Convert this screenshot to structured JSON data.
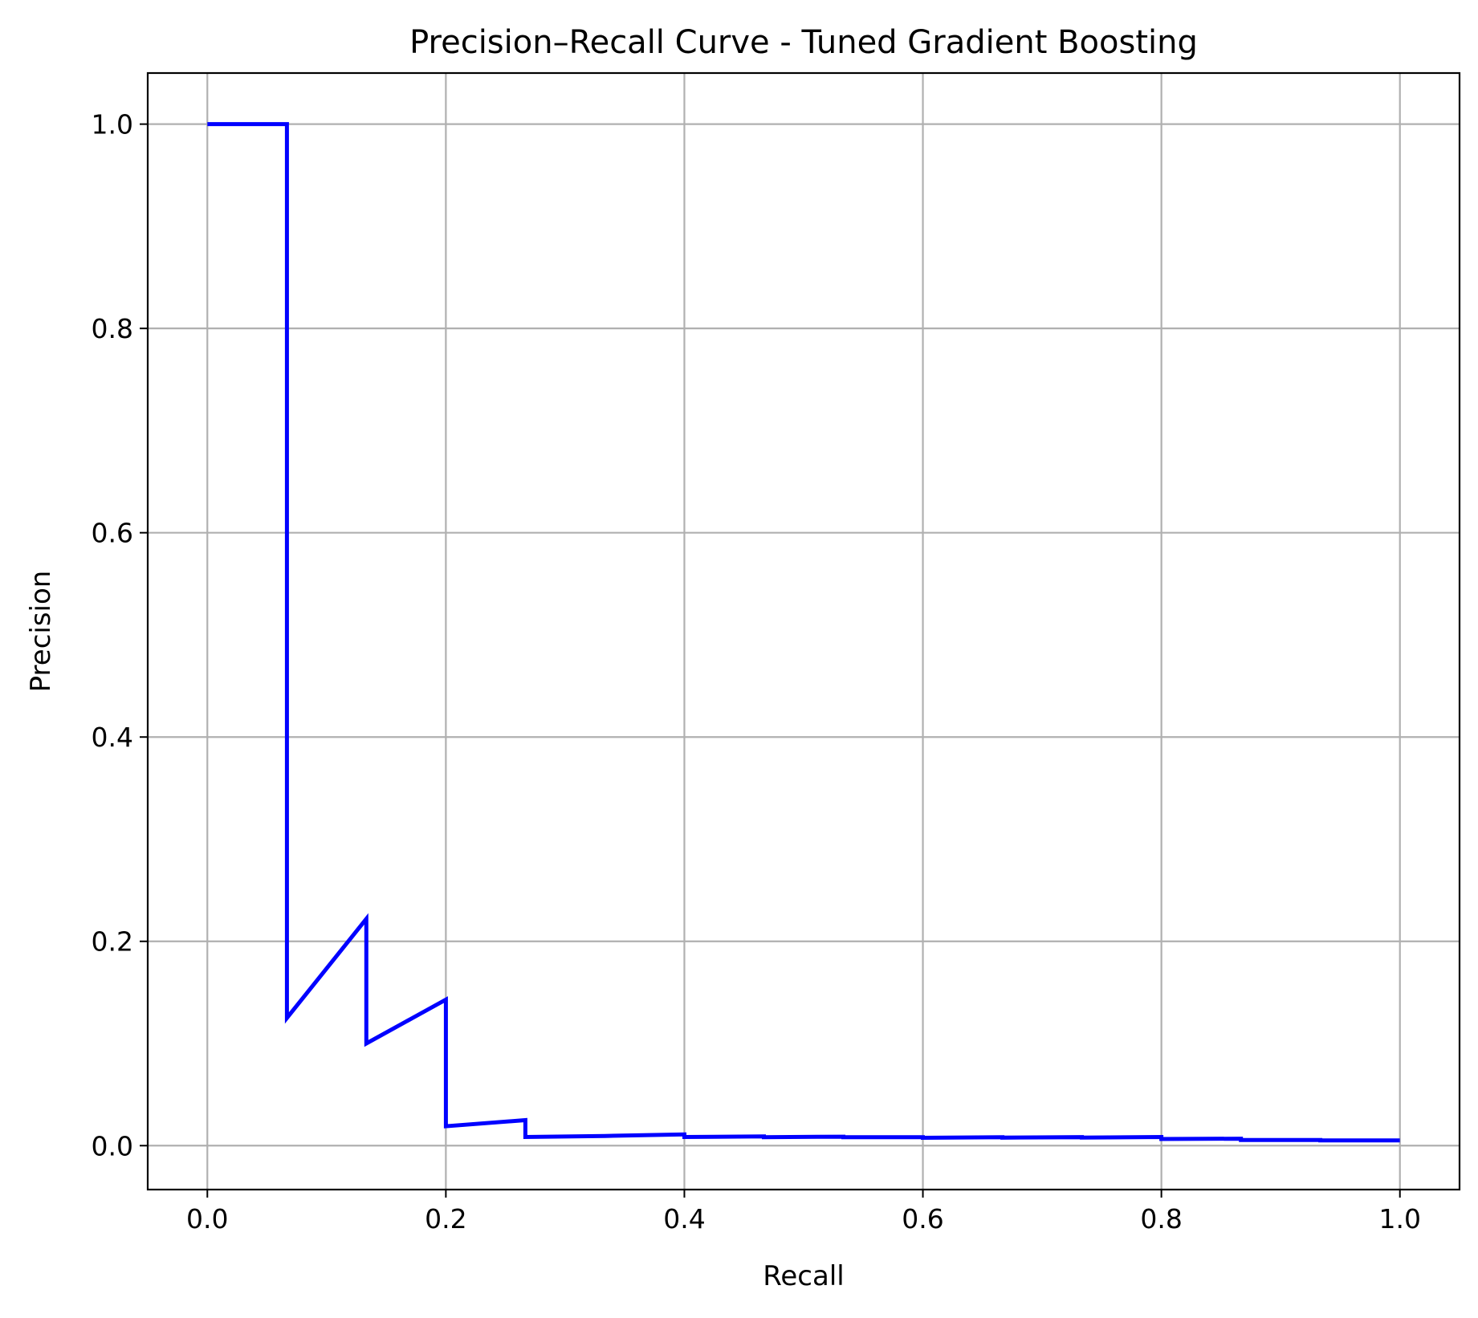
{
  "chart_data": {
    "type": "line",
    "title": "Precision–Recall Curve - Tuned Gradient Boosting",
    "xlabel": "Recall",
    "ylabel": "Precision",
    "xlim": [
      -0.05,
      1.05
    ],
    "ylim": [
      -0.043,
      1.05
    ],
    "xticks": [
      0.0,
      0.2,
      0.4,
      0.6,
      0.8,
      1.0
    ],
    "xtick_labels": [
      "0.0",
      "0.2",
      "0.4",
      "0.6",
      "0.8",
      "1.0"
    ],
    "yticks": [
      0.0,
      0.2,
      0.4,
      0.6,
      0.8,
      1.0
    ],
    "ytick_labels": [
      "0.0",
      "0.2",
      "0.4",
      "0.6",
      "0.8",
      "1.0"
    ],
    "grid": true,
    "legend": false,
    "series": [
      {
        "color": "#0000ff",
        "x": [
          0.0,
          0.0667,
          0.0667,
          0.1333,
          0.1333,
          0.2,
          0.2,
          0.2667,
          0.2667,
          0.3333,
          0.4,
          0.4,
          0.4667,
          0.4667,
          0.5333,
          0.5333,
          0.6,
          0.6,
          0.6667,
          0.6667,
          0.7333,
          0.7333,
          0.8,
          0.8,
          0.8667,
          0.8667,
          0.9333,
          0.9333,
          1.0
        ],
        "y": [
          1.0,
          1.0,
          0.125,
          0.222,
          0.1,
          0.143,
          0.019,
          0.025,
          0.0085,
          0.0095,
          0.011,
          0.0085,
          0.009,
          0.0083,
          0.0088,
          0.0082,
          0.0082,
          0.0077,
          0.0082,
          0.0078,
          0.0083,
          0.0079,
          0.0085,
          0.0065,
          0.0068,
          0.0055,
          0.0055,
          0.0052,
          0.0052
        ]
      }
    ]
  }
}
